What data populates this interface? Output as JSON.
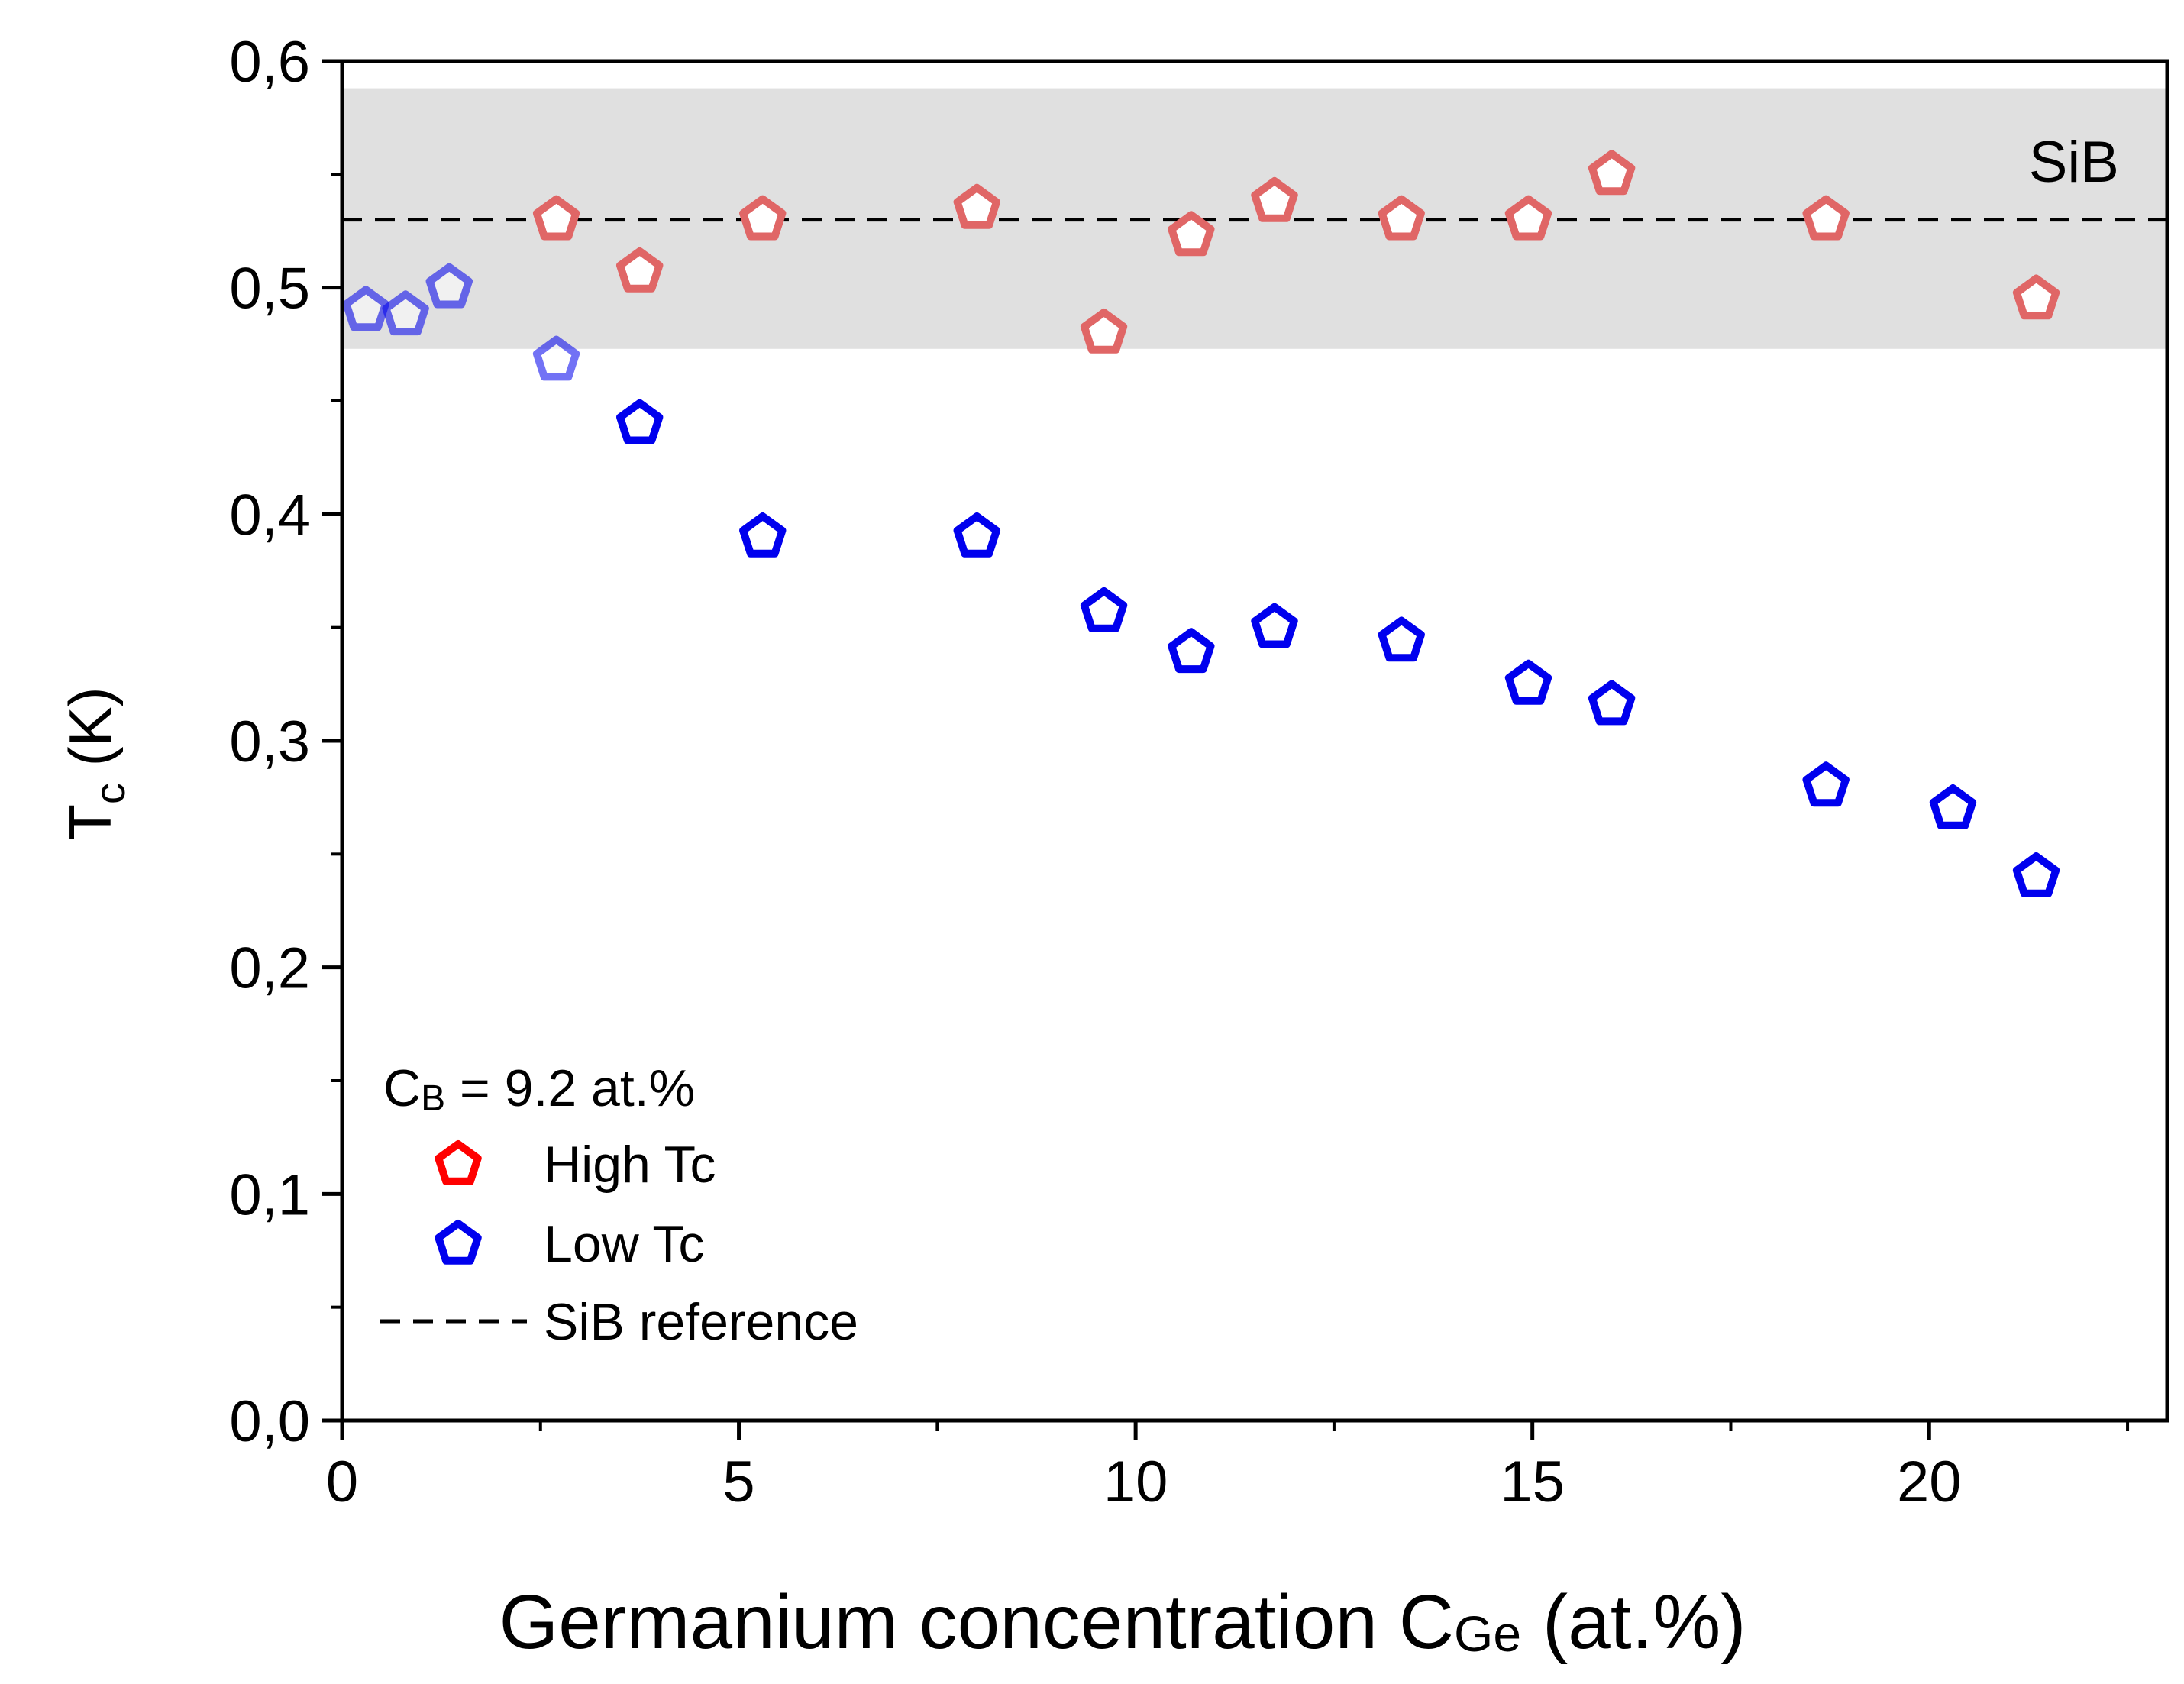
{
  "chart_data": {
    "type": "scatter",
    "title": "",
    "xlabel_main": "Germanium concentration C",
    "xlabel_sub": "Ge",
    "xlabel_tail": " (at.%)",
    "ylabel_main": "T",
    "ylabel_sub": "c",
    "ylabel_tail": " (K)",
    "xlim": [
      0,
      23
    ],
    "ylim": [
      0,
      0.6
    ],
    "x_ticks": [
      0,
      5,
      10,
      15,
      20
    ],
    "x_tick_labels": [
      "0",
      "5",
      "10",
      "15",
      "20"
    ],
    "y_ticks": [
      0,
      0.1,
      0.2,
      0.3,
      0.4,
      0.5,
      0.6
    ],
    "y_tick_labels": [
      "0,0",
      "0,1",
      "0,2",
      "0,3",
      "0,4",
      "0,5",
      "0,6"
    ],
    "band": {
      "y_range": [
        0.473,
        0.588
      ],
      "label": "SiB",
      "color": "#e0e0e0"
    },
    "reference_line": {
      "y": 0.53,
      "name": "SiB reference",
      "style": "dashed",
      "color": "#000000"
    },
    "legend": {
      "placement": "bottom-left",
      "header_main": "C",
      "header_sub": "B",
      "header_tail": " = 9.2 at.%"
    },
    "series": [
      {
        "name": "High Tc",
        "color": "#e06666",
        "legend_color": "#ff0000",
        "marker": "pentagon",
        "points": [
          {
            "x": 2.7,
            "y": 0.53
          },
          {
            "x": 3.75,
            "y": 0.507
          },
          {
            "x": 5.3,
            "y": 0.53
          },
          {
            "x": 8.0,
            "y": 0.535
          },
          {
            "x": 9.6,
            "y": 0.48
          },
          {
            "x": 10.7,
            "y": 0.523
          },
          {
            "x": 11.75,
            "y": 0.538
          },
          {
            "x": 13.35,
            "y": 0.53
          },
          {
            "x": 14.95,
            "y": 0.53
          },
          {
            "x": 16.0,
            "y": 0.55
          },
          {
            "x": 18.7,
            "y": 0.53
          },
          {
            "x": 21.35,
            "y": 0.495
          }
        ]
      },
      {
        "name": "Low Tc",
        "color": "#0000ee",
        "legend_color": "#0000ee",
        "marker": "pentagon",
        "points": [
          {
            "x": 0.3,
            "y": 0.49,
            "faded": true
          },
          {
            "x": 0.8,
            "y": 0.488,
            "faded": true
          },
          {
            "x": 1.35,
            "y": 0.5,
            "faded": true
          },
          {
            "x": 2.7,
            "y": 0.468,
            "faded": true
          },
          {
            "x": 3.75,
            "y": 0.44
          },
          {
            "x": 5.3,
            "y": 0.39
          },
          {
            "x": 8.0,
            "y": 0.39
          },
          {
            "x": 9.6,
            "y": 0.357
          },
          {
            "x": 10.7,
            "y": 0.339
          },
          {
            "x": 11.75,
            "y": 0.35
          },
          {
            "x": 13.35,
            "y": 0.344
          },
          {
            "x": 14.95,
            "y": 0.325
          },
          {
            "x": 16.0,
            "y": 0.316
          },
          {
            "x": 18.7,
            "y": 0.28
          },
          {
            "x": 20.3,
            "y": 0.27
          },
          {
            "x": 21.35,
            "y": 0.24
          }
        ]
      }
    ]
  }
}
